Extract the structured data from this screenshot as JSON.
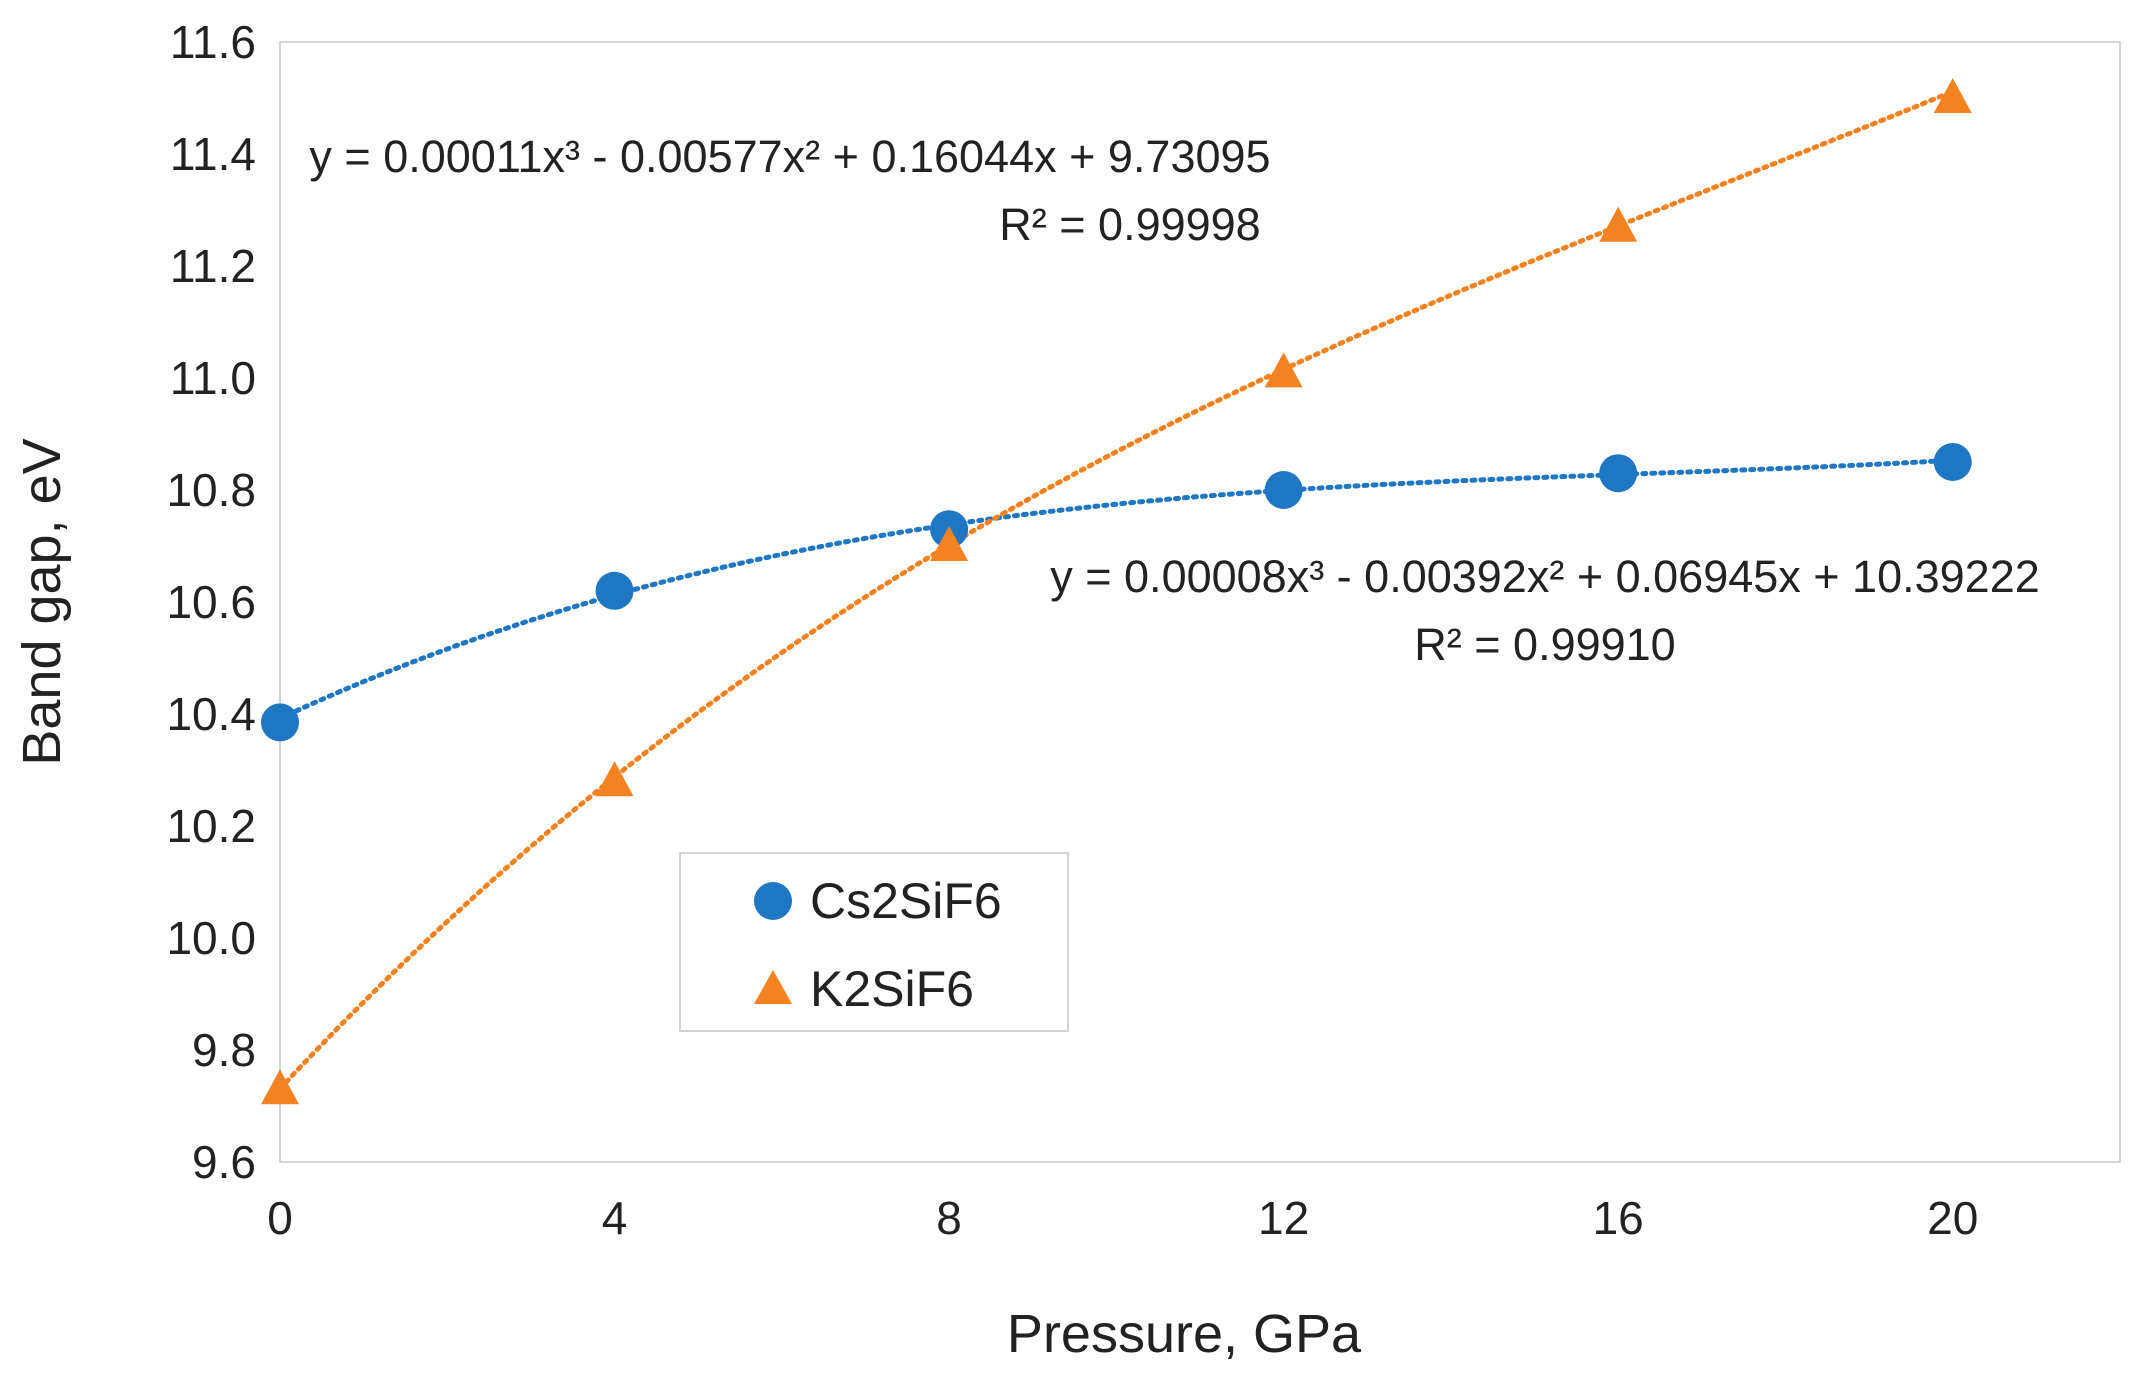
{
  "chart_data": {
    "type": "scatter",
    "title": "",
    "xlabel": "Pressure, GPa",
    "ylabel": "Band gap, eV",
    "xlim": [
      0,
      22
    ],
    "ylim": [
      9.6,
      11.6
    ],
    "xticks": [
      "0",
      "4",
      "8",
      "12",
      "16",
      "20"
    ],
    "yticks": [
      "9.6",
      "9.8",
      "10.0",
      "10.2",
      "10.4",
      "10.6",
      "10.8",
      "11.0",
      "11.2",
      "11.4",
      "11.6"
    ],
    "grid": false,
    "legend_position": "lower-middle",
    "series": [
      {
        "name": "Cs2SiF6",
        "marker": "circle",
        "color": "#1f77c4",
        "x": [
          0,
          4,
          8,
          12,
          16,
          20
        ],
        "y": [
          10.385,
          10.62,
          10.73,
          10.8,
          10.83,
          10.85
        ],
        "trendline": {
          "type": "polynomial",
          "coefficients": [
            8e-05,
            -0.00392,
            0.06945,
            10.39222
          ],
          "equation_label": "y = 0.00008x³ - 0.00392x² + 0.06945x + 10.39222",
          "r2_label": "R² = 0.99910"
        }
      },
      {
        "name": "K2SiF6",
        "marker": "triangle",
        "color": "#f58220",
        "x": [
          0,
          4,
          8,
          12,
          16,
          20
        ],
        "y": [
          9.73,
          10.28,
          10.7,
          11.01,
          11.27,
          11.5
        ],
        "trendline": {
          "type": "polynomial",
          "coefficients": [
            0.00011,
            -0.00577,
            0.16044,
            9.73095
          ],
          "equation_label": "y = 0.00011x³ - 0.00577x² + 0.16044x + 9.73095",
          "r2_label": "R² = 0.99998"
        }
      }
    ]
  }
}
